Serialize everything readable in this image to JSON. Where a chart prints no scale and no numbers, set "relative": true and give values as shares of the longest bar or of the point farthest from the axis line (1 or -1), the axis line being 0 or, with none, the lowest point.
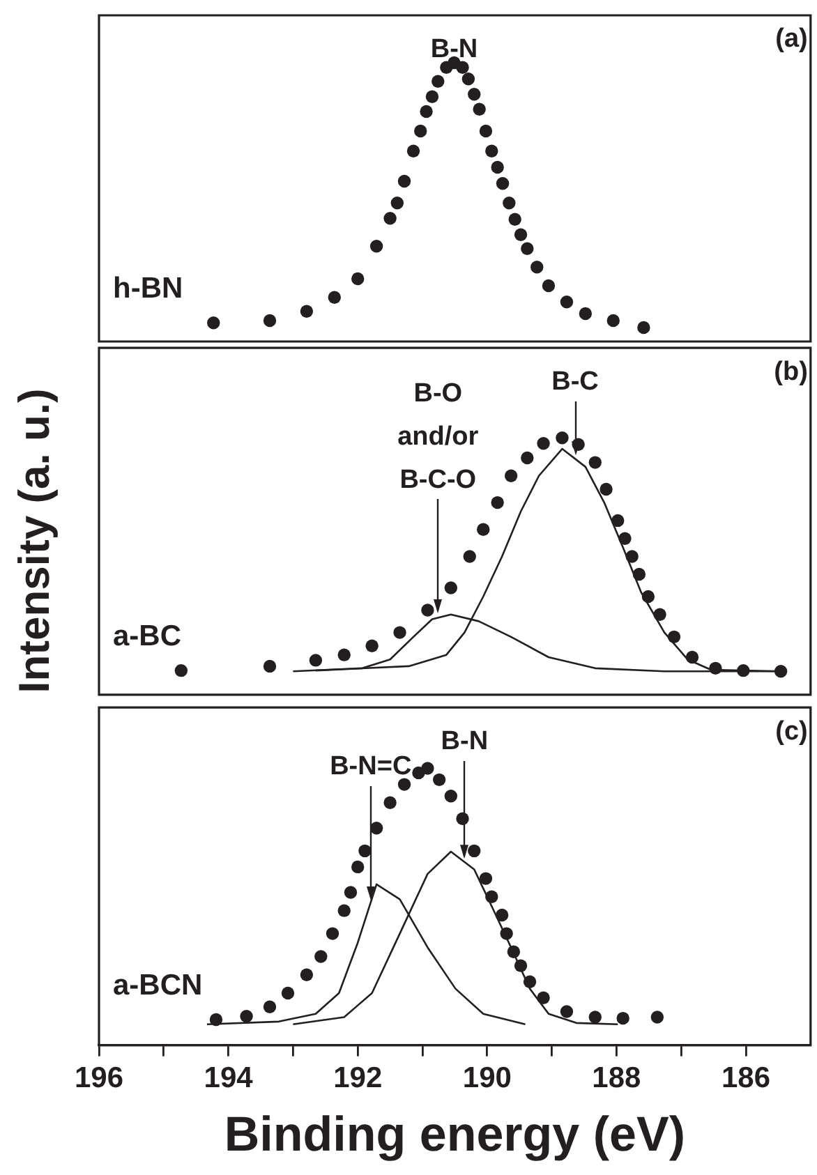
{
  "chart_data": [
    {
      "type": "scatter",
      "relative": true,
      "xlim": [
        196,
        185
      ],
      "tick_labels": false,
      "grid": false,
      "legend": false,
      "marker": "circle",
      "series": [
        {
          "name": "h-BN",
          "color": "#231f20",
          "x": [
            194.23,
            193.36,
            192.79,
            192.36,
            192.0,
            191.71,
            191.5,
            191.39,
            191.28,
            191.14,
            191.03,
            190.94,
            190.85,
            190.76,
            190.63,
            190.51,
            190.38,
            190.29,
            190.2,
            190.12,
            190.02,
            189.93,
            189.84,
            189.76,
            189.66,
            189.57,
            189.48,
            189.38,
            189.23,
            189.05,
            188.77,
            188.48,
            188.05,
            187.58
          ],
          "values": [
            0.067,
            0.075,
            0.108,
            0.158,
            0.225,
            0.342,
            0.442,
            0.497,
            0.575,
            0.683,
            0.755,
            0.825,
            0.878,
            0.933,
            0.983,
            1.0,
            0.983,
            0.942,
            0.887,
            0.833,
            0.755,
            0.683,
            0.625,
            0.567,
            0.497,
            0.438,
            0.383,
            0.333,
            0.267,
            0.2,
            0.142,
            0.1,
            0.075,
            0.05
          ]
        }
      ],
      "annotations": [
        "(a)",
        {
          "text": "B-N",
          "x": 190.51,
          "y": 1.0
        }
      ]
    },
    {
      "type": "scatter",
      "relative": true,
      "xlim": [
        196,
        185
      ],
      "tick_labels": false,
      "grid": false,
      "legend": false,
      "marker": "circle",
      "ylabel": "Intensity (a. u.)",
      "series": [
        {
          "type": "line",
          "color": "#231f20",
          "marker": "none",
          "x": [
            193.0,
            191.93,
            191.5,
            191.14,
            190.85,
            190.56,
            190.13,
            189.63,
            189.05,
            188.33,
            187.26,
            185.46
          ],
          "values": [
            0.091,
            0.103,
            0.137,
            0.225,
            0.294,
            0.312,
            0.286,
            0.225,
            0.146,
            0.103,
            0.091,
            0.091
          ]
        },
        {
          "type": "line",
          "color": "#231f20",
          "marker": "none",
          "x": [
            192.65,
            191.21,
            190.63,
            190.35,
            190.06,
            189.77,
            189.48,
            189.2,
            188.84,
            188.48,
            188.19,
            187.9,
            187.62,
            187.26,
            186.9,
            186.54,
            185.46
          ],
          "values": [
            0.094,
            0.111,
            0.155,
            0.242,
            0.382,
            0.538,
            0.713,
            0.852,
            0.957,
            0.887,
            0.748,
            0.573,
            0.399,
            0.242,
            0.137,
            0.097,
            0.091
          ]
        },
        {
          "name": "a-BC",
          "color": "#231f20",
          "x": [
            194.73,
            193.36,
            192.65,
            192.21,
            191.78,
            191.35,
            190.92,
            190.56,
            190.27,
            190.06,
            189.84,
            189.63,
            189.38,
            189.13,
            188.84,
            188.59,
            188.33,
            188.16,
            187.98,
            187.87,
            187.76,
            187.65,
            187.51,
            187.33,
            187.11,
            186.83,
            186.47,
            186.04,
            185.46
          ],
          "values": [
            0.094,
            0.111,
            0.134,
            0.155,
            0.19,
            0.242,
            0.329,
            0.416,
            0.538,
            0.643,
            0.748,
            0.852,
            0.922,
            0.978,
            1.0,
            0.974,
            0.904,
            0.8,
            0.678,
            0.608,
            0.538,
            0.469,
            0.382,
            0.312,
            0.225,
            0.146,
            0.103,
            0.094,
            0.091
          ]
        }
      ],
      "annotations": [
        "(b)",
        {
          "text": "B-O and/or B-C-O",
          "x": 190.76,
          "y": 0.3
        },
        {
          "text": "B-C",
          "x": 188.64,
          "y": 0.918
        }
      ]
    },
    {
      "type": "scatter",
      "relative": true,
      "xlim": [
        196,
        185
      ],
      "xticks": [
        196,
        {
          "value": 195,
          "label": null
        },
        194,
        {
          "value": 193,
          "label": null
        },
        192,
        {
          "value": 191,
          "label": null
        },
        190,
        {
          "value": 189,
          "label": null
        },
        188,
        {
          "value": 187,
          "label": null
        },
        186
      ],
      "tick_labels": "x",
      "grid": false,
      "legend": false,
      "marker": "circle",
      "xlabel": "Binding energy (eV)",
      "series": [
        {
          "type": "line",
          "color": "#231f20",
          "marker": "none",
          "x": [
            194.33,
            193.22,
            192.65,
            192.29,
            192.0,
            191.71,
            191.35,
            190.92,
            190.49,
            190.06,
            189.41
          ],
          "values": [
            0.075,
            0.085,
            0.113,
            0.188,
            0.37,
            0.581,
            0.527,
            0.353,
            0.204,
            0.113,
            0.075
          ]
        },
        {
          "type": "line",
          "color": "#231f20",
          "marker": "none",
          "x": [
            193.0,
            192.21,
            191.78,
            191.35,
            190.92,
            190.56,
            190.2,
            189.93,
            189.63,
            189.34,
            189.05,
            188.62,
            187.98
          ],
          "values": [
            0.075,
            0.101,
            0.188,
            0.403,
            0.619,
            0.699,
            0.635,
            0.502,
            0.353,
            0.204,
            0.113,
            0.08,
            0.075
          ]
        },
        {
          "name": "a-BCN",
          "color": "#231f20",
          "x": [
            194.19,
            193.72,
            193.36,
            193.08,
            192.79,
            192.57,
            192.39,
            192.21,
            192.11,
            192.0,
            191.89,
            191.71,
            191.5,
            191.28,
            191.06,
            190.92,
            190.74,
            190.56,
            190.38,
            190.2,
            190.02,
            189.93,
            189.77,
            189.7,
            189.59,
            189.48,
            189.34,
            189.13,
            188.77,
            188.33,
            187.9,
            187.37
          ],
          "values": [
            0.092,
            0.104,
            0.138,
            0.188,
            0.254,
            0.32,
            0.403,
            0.486,
            0.552,
            0.644,
            0.702,
            0.784,
            0.876,
            0.942,
            0.984,
            1.0,
            0.959,
            0.9,
            0.818,
            0.702,
            0.602,
            0.536,
            0.47,
            0.403,
            0.337,
            0.287,
            0.229,
            0.171,
            0.121,
            0.101,
            0.097,
            0.101
          ]
        }
      ],
      "annotations": [
        "(c)",
        {
          "text": "B-N=C",
          "x": 191.8,
          "y": 0.51
        },
        {
          "text": "B-N",
          "x": 190.35,
          "y": 0.66
        }
      ]
    }
  ]
}
